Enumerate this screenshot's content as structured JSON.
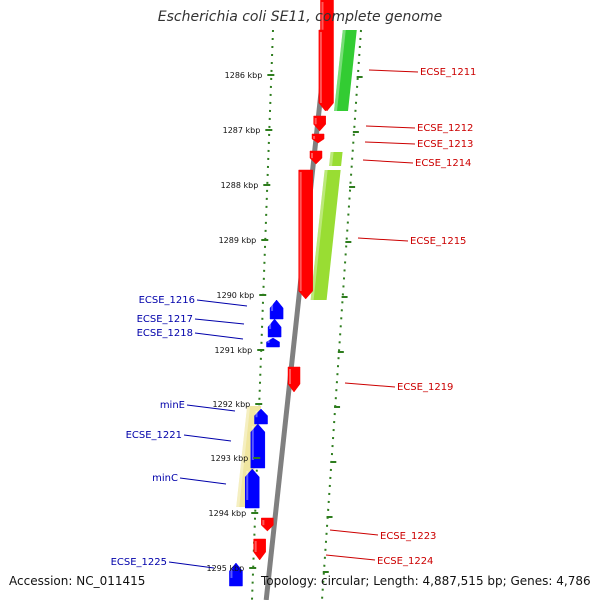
{
  "title": "Escherichia coli SE11, complete genome",
  "footer": {
    "accession": "Accession: NC_011415",
    "summary": "Topology: circular; Length: 4,887,515 bp; Genes: 4,786"
  },
  "colors": {
    "forward_gene": "#ff0000",
    "reverse_gene": "#0000ff",
    "forward_label": "#cc0000",
    "reverse_label": "#0000aa",
    "backbone": "#808080",
    "dotted_guide": "#2e7d1e",
    "green_feature": "#33cc33",
    "yellowgreen_feature": "#99dd33",
    "tan_feature": "#f0e6a0"
  },
  "ruler": {
    "unit": "kbp",
    "ticks": [
      {
        "label": "1286 kbp",
        "kbp": 1286
      },
      {
        "label": "1287 kbp",
        "kbp": 1287
      },
      {
        "label": "1288 kbp",
        "kbp": 1288
      },
      {
        "label": "1289 kbp",
        "kbp": 1289
      },
      {
        "label": "1290 kbp",
        "kbp": 1290
      },
      {
        "label": "1291 kbp",
        "kbp": 1291
      },
      {
        "label": "1292 kbp",
        "kbp": 1292
      },
      {
        "label": "1293 kbp",
        "kbp": 1293
      },
      {
        "label": "1294 kbp",
        "kbp": 1294
      },
      {
        "label": "1295 kbp",
        "kbp": 1295
      }
    ]
  },
  "genes": [
    {
      "name": "ECSE_1211",
      "strand": "forward"
    },
    {
      "name": "ECSE_1212",
      "strand": "forward"
    },
    {
      "name": "ECSE_1213",
      "strand": "forward"
    },
    {
      "name": "ECSE_1214",
      "strand": "forward"
    },
    {
      "name": "ECSE_1215",
      "strand": "forward"
    },
    {
      "name": "ECSE_1216",
      "strand": "reverse"
    },
    {
      "name": "ECSE_1217",
      "strand": "reverse"
    },
    {
      "name": "ECSE_1218",
      "strand": "reverse"
    },
    {
      "name": "ECSE_1219",
      "strand": "forward"
    },
    {
      "name": "minE",
      "strand": "reverse"
    },
    {
      "name": "ECSE_1221",
      "strand": "reverse"
    },
    {
      "name": "minC",
      "strand": "reverse"
    },
    {
      "name": "ECSE_1223",
      "strand": "forward"
    },
    {
      "name": "ECSE_1224",
      "strand": "forward"
    },
    {
      "name": "ECSE_1225",
      "strand": "reverse"
    }
  ]
}
